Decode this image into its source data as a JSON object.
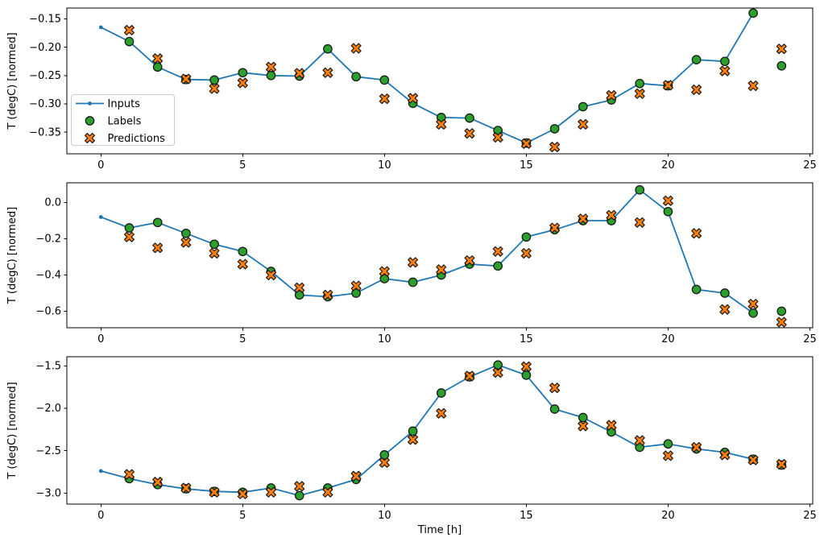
{
  "figure": {
    "xlabel": "Time [h]",
    "ylabel": "T (degC) [normed]",
    "colors": {
      "inputs": "#1f77b4",
      "labels": "#2ca02c",
      "predictions": "#ff7f0e",
      "marker_edge": "#1a1a1a",
      "axes": "#000000"
    },
    "legend": {
      "position": "upper-left-of-subplot-1",
      "items": [
        {
          "label": "Inputs",
          "marker": "line-with-dot-icon"
        },
        {
          "label": "Labels",
          "marker": "circle-icon"
        },
        {
          "label": "Predictions",
          "marker": "x-icon"
        }
      ]
    }
  },
  "chart_data": [
    {
      "type": "line",
      "subplot": 1,
      "ylabel": "T (degC) [normed]",
      "xlabel": "",
      "grid": false,
      "xlim": [
        -1.2,
        25.1
      ],
      "ylim": [
        -0.388,
        -0.131
      ],
      "xticks": [
        0,
        5,
        10,
        15,
        20,
        25
      ],
      "yticks": [
        -0.15,
        -0.2,
        -0.25,
        -0.3,
        -0.35
      ],
      "ytick_labels": [
        "-0.15",
        "-0.20",
        "-0.25",
        "-0.30",
        "-0.35"
      ],
      "series": [
        {
          "name": "Inputs",
          "style": "line+dot",
          "x": [
            0,
            1,
            2,
            3,
            4,
            5,
            6,
            7,
            8,
            9,
            10,
            11,
            12,
            13,
            14,
            15,
            16,
            17,
            18,
            19,
            20,
            21,
            22,
            23
          ],
          "y": [
            -0.165,
            -0.19,
            -0.235,
            -0.257,
            -0.258,
            -0.245,
            -0.25,
            -0.251,
            -0.203,
            -0.252,
            -0.258,
            -0.299,
            -0.324,
            -0.325,
            -0.347,
            -0.369,
            -0.344,
            -0.305,
            -0.293,
            -0.264,
            -0.268,
            -0.222,
            -0.225,
            -0.14
          ]
        },
        {
          "name": "Labels",
          "style": "scatter-circle",
          "x": [
            1,
            2,
            3,
            4,
            5,
            6,
            7,
            8,
            9,
            10,
            11,
            12,
            13,
            14,
            15,
            16,
            17,
            18,
            19,
            20,
            21,
            22,
            23,
            24
          ],
          "y": [
            -0.19,
            -0.235,
            -0.257,
            -0.258,
            -0.245,
            -0.25,
            -0.251,
            -0.203,
            -0.252,
            -0.258,
            -0.299,
            -0.324,
            -0.325,
            -0.347,
            -0.369,
            -0.344,
            -0.305,
            -0.293,
            -0.264,
            -0.268,
            -0.222,
            -0.225,
            -0.14,
            -0.233
          ]
        },
        {
          "name": "Predictions",
          "style": "scatter-x",
          "x": [
            1,
            2,
            3,
            4,
            5,
            6,
            7,
            8,
            9,
            10,
            11,
            12,
            13,
            14,
            15,
            16,
            17,
            18,
            19,
            20,
            21,
            22,
            23,
            24
          ],
          "y": [
            -0.17,
            -0.22,
            -0.256,
            -0.273,
            -0.263,
            -0.235,
            -0.246,
            -0.245,
            -0.202,
            -0.291,
            -0.29,
            -0.336,
            -0.352,
            -0.359,
            -0.37,
            -0.376,
            -0.336,
            -0.285,
            -0.282,
            -0.267,
            -0.275,
            -0.242,
            -0.268,
            -0.203
          ]
        }
      ]
    },
    {
      "type": "line",
      "subplot": 2,
      "ylabel": "T (degC) [normed]",
      "xlabel": "",
      "grid": false,
      "xlim": [
        -1.2,
        25.1
      ],
      "ylim": [
        -0.691,
        0.109
      ],
      "xticks": [
        0,
        5,
        10,
        15,
        20,
        25
      ],
      "yticks": [
        0.0,
        -0.2,
        -0.4,
        -0.6
      ],
      "ytick_labels": [
        "0.0",
        "-0.2",
        "-0.4",
        "-0.6"
      ],
      "series": [
        {
          "name": "Inputs",
          "style": "line+dot",
          "x": [
            0,
            1,
            2,
            3,
            4,
            5,
            6,
            7,
            8,
            9,
            10,
            11,
            12,
            13,
            14,
            15,
            16,
            17,
            18,
            19,
            20,
            21,
            22,
            23
          ],
          "y": [
            -0.08,
            -0.14,
            -0.11,
            -0.17,
            -0.23,
            -0.27,
            -0.38,
            -0.51,
            -0.52,
            -0.5,
            -0.42,
            -0.44,
            -0.4,
            -0.34,
            -0.35,
            -0.19,
            -0.15,
            -0.1,
            -0.1,
            0.07,
            -0.05,
            -0.48,
            -0.5,
            -0.61
          ]
        },
        {
          "name": "Labels",
          "style": "scatter-circle",
          "x": [
            1,
            2,
            3,
            4,
            5,
            6,
            7,
            8,
            9,
            10,
            11,
            12,
            13,
            14,
            15,
            16,
            17,
            18,
            19,
            20,
            21,
            22,
            23,
            24
          ],
          "y": [
            -0.14,
            -0.11,
            -0.17,
            -0.23,
            -0.27,
            -0.38,
            -0.51,
            -0.52,
            -0.5,
            -0.42,
            -0.44,
            -0.4,
            -0.34,
            -0.35,
            -0.19,
            -0.15,
            -0.1,
            -0.1,
            0.07,
            -0.05,
            -0.48,
            -0.5,
            -0.61,
            -0.6
          ]
        },
        {
          "name": "Predictions",
          "style": "scatter-x",
          "x": [
            1,
            2,
            3,
            4,
            5,
            6,
            7,
            8,
            9,
            10,
            11,
            12,
            13,
            14,
            15,
            16,
            17,
            18,
            19,
            20,
            21,
            22,
            23,
            24
          ],
          "y": [
            -0.19,
            -0.25,
            -0.22,
            -0.28,
            -0.34,
            -0.4,
            -0.47,
            -0.51,
            -0.46,
            -0.38,
            -0.33,
            -0.37,
            -0.32,
            -0.27,
            -0.28,
            -0.14,
            -0.09,
            -0.07,
            -0.11,
            0.01,
            -0.17,
            -0.59,
            -0.56,
            -0.66
          ]
        }
      ]
    },
    {
      "type": "line",
      "subplot": 3,
      "ylabel": "T (degC) [normed]",
      "xlabel": "Time [h]",
      "grid": false,
      "xlim": [
        -1.2,
        25.1
      ],
      "ylim": [
        -3.13,
        -1.393
      ],
      "xticks": [
        0,
        5,
        10,
        15,
        20,
        25
      ],
      "yticks": [
        -1.5,
        -2.0,
        -2.5,
        -3.0
      ],
      "ytick_labels": [
        "-1.5",
        "-2.0",
        "-2.5",
        "-3.0"
      ],
      "series": [
        {
          "name": "Inputs",
          "style": "line+dot",
          "x": [
            0,
            1,
            2,
            3,
            4,
            5,
            6,
            7,
            8,
            9,
            10,
            11,
            12,
            13,
            14,
            15,
            16,
            17,
            18,
            19,
            20,
            21,
            22,
            23
          ],
          "y": [
            -2.74,
            -2.83,
            -2.9,
            -2.95,
            -2.98,
            -2.99,
            -2.94,
            -3.03,
            -2.94,
            -2.84,
            -2.55,
            -2.27,
            -1.82,
            -1.63,
            -1.49,
            -1.61,
            -2.01,
            -2.11,
            -2.28,
            -2.46,
            -2.42,
            -2.48,
            -2.52,
            -2.6
          ]
        },
        {
          "name": "Labels",
          "style": "scatter-circle",
          "x": [
            1,
            2,
            3,
            4,
            5,
            6,
            7,
            8,
            9,
            10,
            11,
            12,
            13,
            14,
            15,
            16,
            17,
            18,
            19,
            20,
            21,
            22,
            23,
            24
          ],
          "y": [
            -2.83,
            -2.9,
            -2.95,
            -2.98,
            -2.99,
            -2.94,
            -3.03,
            -2.94,
            -2.84,
            -2.55,
            -2.27,
            -1.82,
            -1.63,
            -1.49,
            -1.61,
            -2.01,
            -2.11,
            -2.28,
            -2.46,
            -2.42,
            -2.48,
            -2.52,
            -2.6,
            -2.67
          ]
        },
        {
          "name": "Predictions",
          "style": "scatter-x",
          "x": [
            1,
            2,
            3,
            4,
            5,
            6,
            7,
            8,
            9,
            10,
            11,
            12,
            13,
            14,
            15,
            16,
            17,
            18,
            19,
            20,
            21,
            22,
            23,
            24
          ],
          "y": [
            -2.78,
            -2.87,
            -2.94,
            -2.99,
            -3.01,
            -2.99,
            -2.92,
            -2.99,
            -2.8,
            -2.64,
            -2.37,
            -2.06,
            -1.62,
            -1.58,
            -1.51,
            -1.76,
            -2.21,
            -2.2,
            -2.38,
            -2.56,
            -2.46,
            -2.55,
            -2.61,
            -2.66
          ]
        }
      ]
    }
  ]
}
